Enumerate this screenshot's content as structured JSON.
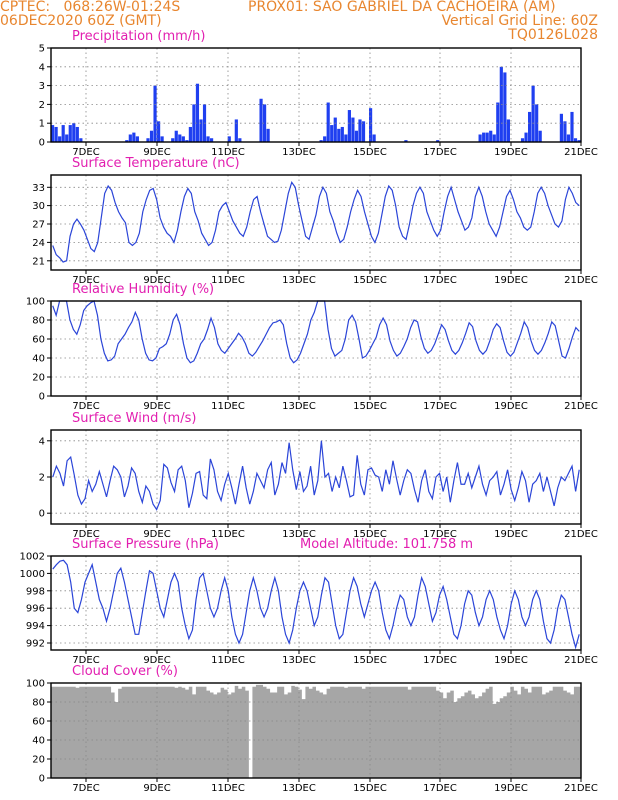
{
  "header": {
    "center": "CPTEC:",
    "location_coords": "068:26W-01:24S",
    "station": "PROX01: SAO GABRIEL DA CACHOEIRA (AM)",
    "run": "06DEC2020 60Z (GMT)",
    "grid_line": "Vertical Grid Line: 60Z",
    "model": "TQ0126L028"
  },
  "model_altitude_label": "Model Altitude: 101.758 m",
  "colors": {
    "header": "#e8862f",
    "title": "#e21fb0",
    "line": "#2b45d8",
    "bar": "#1f3ff0",
    "cloud": "#a6a6a6"
  },
  "x_tick_labels": [
    "7DEC",
    "9DEC",
    "11DEC",
    "13DEC",
    "15DEC",
    "17DEC",
    "19DEC",
    "21DEC"
  ],
  "chart_data": [
    {
      "type": "bar",
      "title": "Precipitation (mm/h)",
      "ylim": [
        0,
        5
      ],
      "yticks": [
        0,
        1,
        2,
        3,
        4,
        5
      ],
      "series": [
        {
          "values": [
            0.9,
            0.8,
            0.3,
            0.9,
            0.4,
            0.9,
            1.0,
            0.8,
            0.2,
            0,
            0,
            0,
            0,
            0,
            0,
            0,
            0,
            0,
            0,
            0,
            0,
            0.1,
            0.4,
            0.5,
            0.3,
            0,
            0,
            0.2,
            0.6,
            3.0,
            1.1,
            0.3,
            0,
            0,
            0.2,
            0.6,
            0.4,
            0.3,
            0.1,
            0.8,
            2.0,
            3.1,
            1.2,
            2.0,
            0.3,
            0.2,
            0,
            0,
            0,
            0,
            0.3,
            0,
            1.2,
            0.2,
            0,
            0,
            0,
            0,
            0,
            2.3,
            2.0,
            0.7,
            0,
            0,
            0,
            0,
            0,
            0,
            0,
            0,
            0,
            0,
            0,
            0,
            0,
            0,
            0.1,
            0.3,
            2.1,
            0.9,
            1.3,
            0.7,
            0.8,
            0.4,
            1.7,
            1.3,
            0.6,
            1.2,
            1.1,
            0,
            1.8,
            0.4,
            0,
            0,
            0,
            0,
            0,
            0,
            0,
            0,
            0.1,
            0,
            0,
            0,
            0,
            0,
            0,
            0,
            0,
            0.1,
            0,
            0,
            0,
            0,
            0,
            0,
            0,
            0,
            0,
            0,
            0,
            0.4,
            0.5,
            0.5,
            0.6,
            0.4,
            2.1,
            4.0,
            3.7,
            1.2,
            0,
            0,
            0,
            0.2,
            0.5,
            1.6,
            3.0,
            2.0,
            0.6,
            0,
            0,
            0,
            0,
            0,
            1.5,
            1.1,
            0.4,
            1.6,
            0.2,
            0.1
          ]
        }
      ]
    },
    {
      "type": "line",
      "title": "Surface Temperature (nC)",
      "ylim": [
        19.5,
        35
      ],
      "yticks": [
        21,
        24,
        27,
        30,
        33
      ],
      "values": [
        23.5,
        22,
        21.5,
        20.8,
        21,
        25,
        27,
        27.8,
        27,
        26,
        24.5,
        23,
        22.5,
        24,
        28,
        32,
        33.2,
        32.5,
        30.5,
        29,
        28,
        27.2,
        24,
        23.5,
        24,
        25.5,
        29,
        31,
        32.5,
        32.8,
        31,
        28,
        26.5,
        25.5,
        25,
        24,
        26,
        29,
        31.5,
        32.8,
        32,
        29,
        27.5,
        25.5,
        24.5,
        23.5,
        24,
        26,
        29,
        30,
        30.5,
        29,
        27.5,
        26.5,
        25.5,
        25,
        26.5,
        29,
        31,
        31.5,
        29,
        27,
        25,
        24.5,
        24,
        24.2,
        26,
        29,
        32,
        33.8,
        33,
        30,
        27.5,
        25,
        24.5,
        26.5,
        28.5,
        31.5,
        33,
        32,
        29,
        27.5,
        25.5,
        24,
        24.5,
        26.5,
        29,
        31,
        32.5,
        31.5,
        29,
        27,
        25,
        24,
        25.5,
        28.5,
        31.5,
        33.2,
        32.5,
        30,
        26.5,
        25,
        24.5,
        27,
        30,
        32,
        33,
        32,
        29,
        27.5,
        26,
        25,
        26,
        29,
        31.5,
        33,
        31,
        29,
        27.5,
        26,
        26.5,
        28,
        31.5,
        33,
        31.5,
        29,
        27,
        26,
        25,
        26.5,
        29,
        31.5,
        32.5,
        31,
        29,
        28,
        26.5,
        26,
        26.5,
        29,
        32,
        33,
        32,
        30,
        28.5,
        27,
        26.5,
        27.5,
        31,
        33,
        32,
        30.5,
        30
      ]
    },
    {
      "type": "line",
      "title": "Relative Humidity (%)",
      "ylim": [
        0,
        100
      ],
      "yticks": [
        0,
        20,
        40,
        60,
        80,
        100
      ],
      "values": [
        95,
        85,
        100,
        100,
        100,
        80,
        70,
        65,
        75,
        90,
        95,
        98,
        100,
        85,
        60,
        45,
        37,
        38,
        42,
        55,
        60,
        65,
        72,
        78,
        88,
        80,
        60,
        45,
        38,
        37,
        40,
        50,
        52,
        55,
        65,
        80,
        86,
        75,
        55,
        40,
        35,
        37,
        45,
        55,
        60,
        70,
        82,
        72,
        55,
        48,
        45,
        50,
        55,
        60,
        66,
        62,
        55,
        45,
        42,
        46,
        52,
        58,
        65,
        72,
        77,
        78,
        80,
        75,
        55,
        40,
        35,
        38,
        45,
        55,
        65,
        80,
        88,
        100,
        100,
        100,
        70,
        50,
        42,
        45,
        48,
        60,
        80,
        85,
        78,
        60,
        40,
        42,
        48,
        55,
        62,
        75,
        82,
        75,
        58,
        48,
        42,
        45,
        52,
        60,
        72,
        80,
        78,
        62,
        50,
        45,
        48,
        55,
        65,
        75,
        70,
        58,
        48,
        44,
        48,
        56,
        66,
        77,
        73,
        58,
        48,
        44,
        48,
        58,
        70,
        76,
        72,
        58,
        46,
        42,
        46,
        56,
        66,
        78,
        72,
        58,
        48,
        44,
        48,
        56,
        66,
        78,
        74,
        58,
        42,
        40,
        50,
        62,
        72,
        68
      ]
    },
    {
      "type": "line",
      "title": "Surface Wind (m/s)",
      "ylim": [
        -0.6,
        4.6
      ],
      "yticks": [
        0,
        2,
        4
      ],
      "values": [
        2,
        2.6,
        2.2,
        1.5,
        2.9,
        3.1,
        2.1,
        1.0,
        0.5,
        0.8,
        1.8,
        1.2,
        1.6,
        2.3,
        1.6,
        0.9,
        1.8,
        2.6,
        2.4,
        2.0,
        0.9,
        1.5,
        2.5,
        2.2,
        1.2,
        0.6,
        1.5,
        1.2,
        0.5,
        0.2,
        0.7,
        2.7,
        2.5,
        1.7,
        1.2,
        2.4,
        2.6,
        1.8,
        0.3,
        1.1,
        2.2,
        2.3,
        1.0,
        0.8,
        3.0,
        2.4,
        1.2,
        0.7,
        1.6,
        2.2,
        1.4,
        0.5,
        1.6,
        2.6,
        1.4,
        0.5,
        1.2,
        2.2,
        1.8,
        1.4,
        2.4,
        2.8,
        1.0,
        1.6,
        2.8,
        2.2,
        3.9,
        2.4,
        1.3,
        2.3,
        1.2,
        1.5,
        2.6,
        1.0,
        1.8,
        4.0,
        2.0,
        2.2,
        1.2,
        2.0,
        1.4,
        2.6,
        1.8,
        0.9,
        1.0,
        3.2,
        1.6,
        1.0,
        2.4,
        2.5,
        2.1,
        2.0,
        1.2,
        2.4,
        1.6,
        2.9,
        1.9,
        1.0,
        1.8,
        2.4,
        2.2,
        1.3,
        0.6,
        1.8,
        2.4,
        1.2,
        0.8,
        2.0,
        2.2,
        1.2,
        2.0,
        0.6,
        1.8,
        2.8,
        1.6,
        1.6,
        2.2,
        1.4,
        2.0,
        2.6,
        1.6,
        1.0,
        1.8,
        2.0,
        2.3,
        1.0,
        1.6,
        2.4,
        1.3,
        0.7,
        1.4,
        2.3,
        1.8,
        0.6,
        1.6,
        1.8,
        2.2,
        1.2,
        2.0,
        1.2,
        0.4,
        1.4,
        2.0,
        1.8,
        2.2,
        2.6,
        1.2,
        2.4
      ]
    },
    {
      "type": "line",
      "title": "Surface Pressure (hPa)",
      "ylim": [
        991.2,
        1002
      ],
      "yticks": [
        992,
        994,
        996,
        998,
        1000,
        1002
      ],
      "values": [
        1000.5,
        1001,
        1001.4,
        1001.5,
        1001,
        999,
        996,
        995.5,
        997,
        999,
        1000,
        1001,
        999,
        997,
        996,
        994.5,
        996,
        998,
        1000,
        1000.6,
        999,
        997,
        995,
        993,
        993,
        995.5,
        998,
        1000.3,
        1000,
        998,
        996,
        995,
        997,
        999,
        1000,
        999,
        996,
        994,
        992.5,
        993.5,
        997,
        999.5,
        1000,
        998,
        996,
        995,
        996,
        998,
        999.5,
        998,
        995,
        993,
        992,
        993,
        995.5,
        998,
        999.5,
        998,
        996,
        995,
        996,
        998,
        999.5,
        998,
        995,
        993,
        992,
        993.5,
        996,
        998,
        999,
        998,
        996,
        994,
        995,
        997.5,
        999.5,
        999,
        996.5,
        994,
        992.5,
        993,
        995.5,
        998,
        999.5,
        998.5,
        996.5,
        995,
        996.5,
        998,
        999,
        998,
        995.5,
        993.5,
        992.5,
        994,
        996,
        997.5,
        997,
        995,
        994,
        995,
        997.5,
        999.5,
        998.5,
        996.5,
        994.5,
        995.5,
        997.5,
        998.5,
        997,
        995,
        993,
        992.5,
        994,
        996.5,
        998,
        997.5,
        995.5,
        994,
        995,
        997,
        998,
        997,
        995,
        993.5,
        992.5,
        994,
        996.5,
        998,
        997,
        995,
        994,
        995,
        997,
        998,
        997,
        994.5,
        992.5,
        992,
        993.5,
        996,
        997.5,
        997,
        995,
        993,
        991.5,
        993
      ]
    },
    {
      "type": "area",
      "title": "Cloud Cover (%)",
      "ylim": [
        0,
        100
      ],
      "yticks": [
        0,
        20,
        40,
        60,
        80,
        100
      ],
      "values": [
        96,
        96,
        96,
        96,
        96,
        96,
        96,
        95,
        96,
        96,
        96,
        96,
        96,
        96,
        96,
        96,
        96,
        90,
        80,
        94,
        96,
        96,
        96,
        96,
        96,
        96,
        96,
        96,
        96,
        96,
        96,
        96,
        96,
        96,
        96,
        95,
        96,
        95,
        93,
        96,
        88,
        96,
        96,
        96,
        92,
        90,
        88,
        90,
        95,
        93,
        88,
        90,
        97,
        94,
        96,
        92,
        0,
        96,
        98,
        98,
        96,
        94,
        90,
        90,
        96,
        96,
        88,
        90,
        97,
        96,
        93,
        83,
        96,
        94,
        96,
        92,
        90,
        88,
        94,
        96,
        96,
        96,
        96,
        95,
        96,
        96,
        96,
        96,
        94,
        96,
        96,
        96,
        96,
        96,
        96,
        96,
        96,
        96,
        96,
        96,
        96,
        93,
        96,
        96,
        96,
        96,
        96,
        96,
        96,
        92,
        90,
        84,
        90,
        92,
        80,
        84,
        86,
        90,
        92,
        88,
        84,
        86,
        90,
        94,
        96,
        78,
        80,
        84,
        86,
        90,
        96,
        92,
        88,
        96,
        94,
        90,
        96,
        96,
        96,
        88,
        90,
        92,
        96,
        96,
        96,
        92,
        90,
        88,
        96,
        96
      ]
    }
  ]
}
